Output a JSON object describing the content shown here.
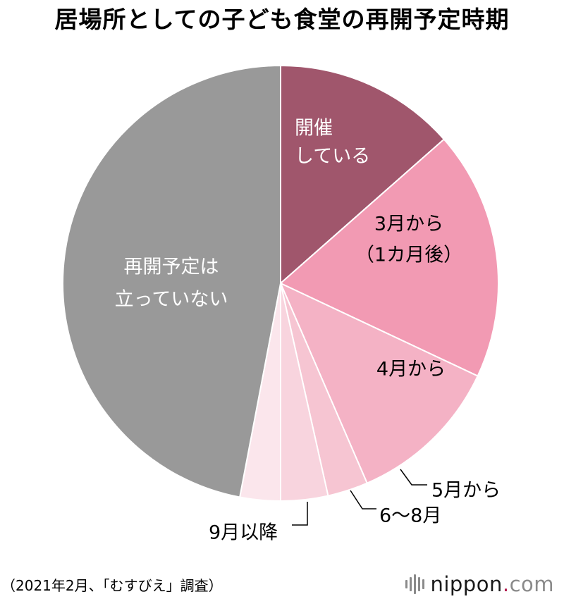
{
  "title": "居場所としての子ども食堂の再開予定時期",
  "chart_data": {
    "type": "pie",
    "title": "居場所としての子ども食堂の再開予定時期",
    "slices": [
      {
        "label": "開催している",
        "lines": [
          "開催",
          "している"
        ],
        "value": 13.5,
        "color": "#a0566c",
        "label_color": "#ffffff"
      },
      {
        "label": "3月から（1カ月後）",
        "lines": [
          "3月から",
          "（1カ月後）"
        ],
        "value": 18.5,
        "color": "#f29ab3",
        "label_color": "#000000"
      },
      {
        "label": "4月から",
        "lines": [
          "4月から"
        ],
        "value": 11.5,
        "color": "#f4b2c5",
        "label_color": "#000000"
      },
      {
        "label": "5月から",
        "lines": [
          "5月から"
        ],
        "value": 3.0,
        "color": "#f6c5d2",
        "label_color": "#000000"
      },
      {
        "label": "6〜8月",
        "lines": [
          "6〜8月"
        ],
        "value": 3.5,
        "color": "#f8d4de",
        "label_color": "#000000"
      },
      {
        "label": "9月以降",
        "lines": [
          "9月以降"
        ],
        "value": 3.0,
        "color": "#fbe6ec",
        "label_color": "#000000"
      },
      {
        "label": "再開予定は立っていない",
        "lines": [
          "再開予定は",
          "立っていない"
        ],
        "value": 47.0,
        "color": "#999999",
        "label_color": "#ffffff"
      }
    ]
  },
  "source": "（2021年2月、「むすびえ」調査）",
  "brand": {
    "name": "nippon",
    "dot": ".",
    "tld": "com"
  }
}
